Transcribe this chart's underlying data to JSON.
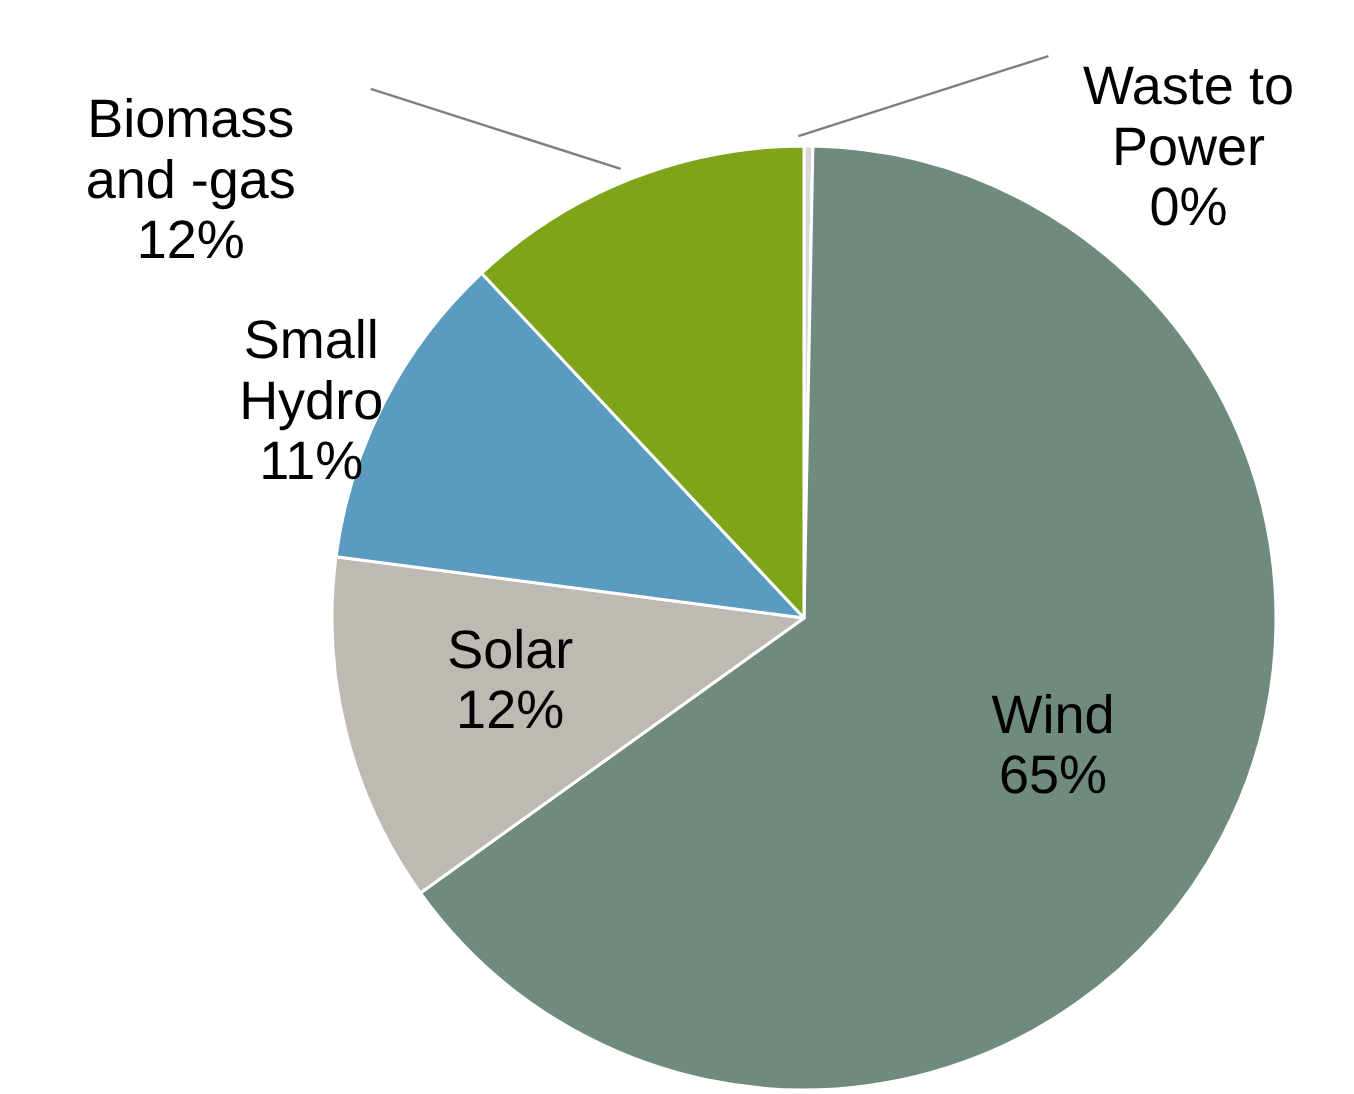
{
  "chart_data": {
    "type": "pie",
    "categories": [
      "Waste to Power",
      "Wind",
      "Solar",
      "Small Hydro",
      "Biomass and -gas"
    ],
    "values": [
      0.3,
      65,
      12,
      11,
      12
    ],
    "value_labels": [
      "0%",
      "65%",
      "12%",
      "11%",
      "12%"
    ],
    "colors": [
      "#d9d9d9",
      "#6f8b7e",
      "#bfb9b4",
      "#5b9bc0",
      "#7ea51a"
    ]
  }
}
